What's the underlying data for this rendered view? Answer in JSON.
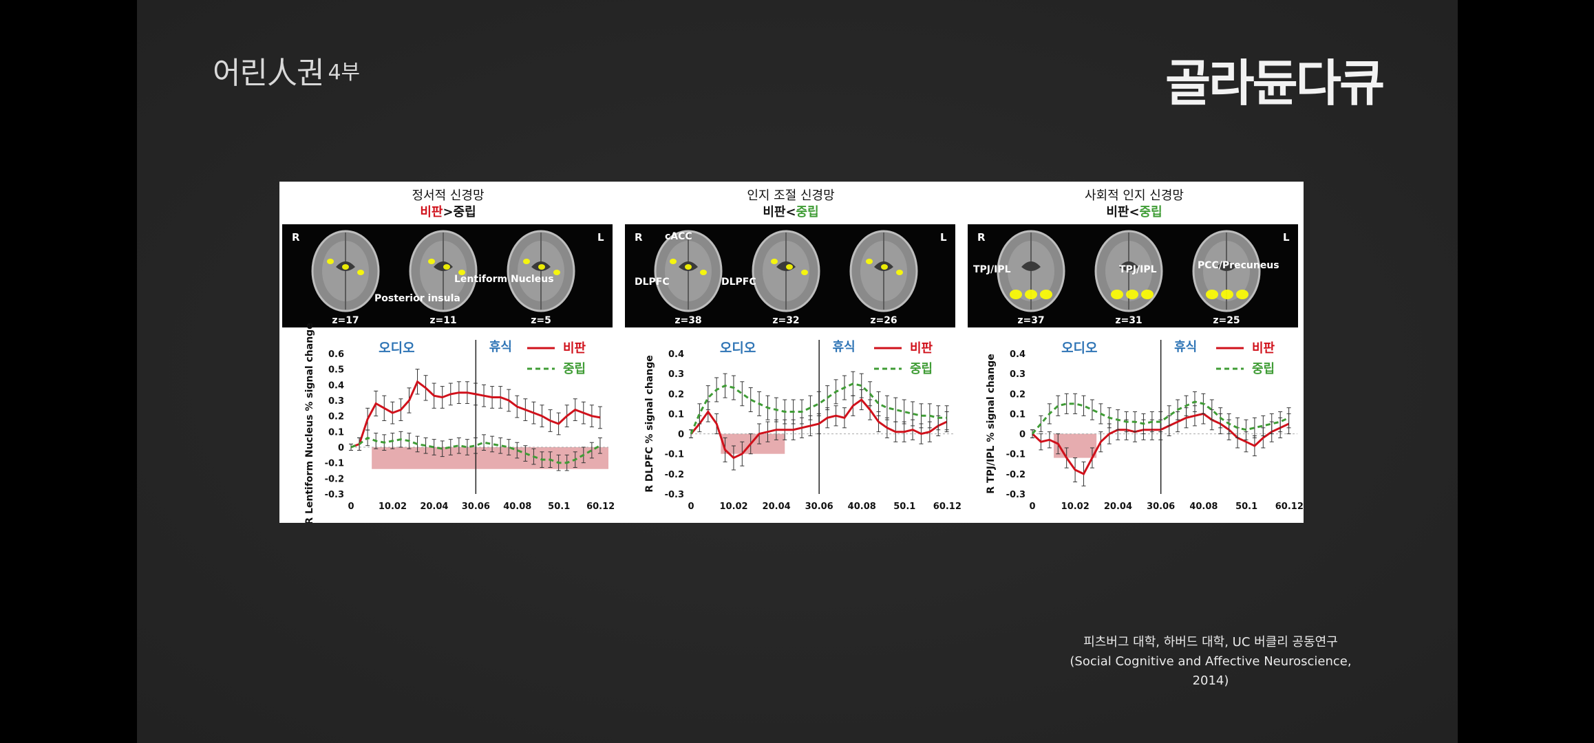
{
  "overlay": {
    "show_title": "어린人권",
    "show_part": "4부",
    "channel": "골라듄다큐",
    "caption_line1": "피츠버그 대학, 하버드 대학, UC 버클리 공동연구",
    "caption_line2": "(Social Cognitive and Affective Neuroscience, 2014)"
  },
  "colors": {
    "criticism": "#d0111b",
    "neutral": "#3f9c35",
    "shade": "#e3a3a6",
    "audio_label": "#2e74b5",
    "highlight": "#ffff00"
  },
  "chart_data": [
    {
      "type": "line",
      "network_title": "정서적 신경망",
      "contrast": {
        "left": "비판",
        "op": ">",
        "right": "중립",
        "emphasis": "left"
      },
      "brain_panel": {
        "side_left": "R",
        "side_right": "L",
        "slices": [
          "z=17",
          "z=11",
          "z=5"
        ],
        "annotations": [
          "Posterior insula",
          "Lentiform Nucleus"
        ]
      },
      "ylabel": "R Lentiform Nucleus % signal change",
      "ylim": [
        -0.3,
        0.6
      ],
      "yticks": [
        0.6,
        0.5,
        0.4,
        0.3,
        0.2,
        0.1,
        0,
        -0.1,
        -0.2,
        -0.3
      ],
      "xlim": [
        0,
        62
      ],
      "xticks": [
        "0",
        "10.02",
        "20.04",
        "30.06",
        "40.08",
        "50.1",
        "60.12"
      ],
      "phase_labels": {
        "audio": "오디오",
        "rest": "휴식"
      },
      "divider_x": 30.06,
      "shade": {
        "x0": 5,
        "x1": 62,
        "y0": -0.14,
        "y1": 0
      },
      "legend": [
        "비판",
        "중립"
      ],
      "x": [
        0,
        2,
        4,
        6,
        8,
        10,
        12,
        14,
        16,
        18,
        20,
        22,
        24,
        26,
        28,
        30,
        32,
        34,
        36,
        38,
        40,
        42,
        44,
        46,
        48,
        50,
        52,
        54,
        56,
        58,
        60
      ],
      "series": [
        {
          "name": "비판",
          "values": [
            0,
            0.02,
            0.18,
            0.28,
            0.25,
            0.22,
            0.24,
            0.3,
            0.42,
            0.38,
            0.33,
            0.32,
            0.34,
            0.35,
            0.35,
            0.34,
            0.33,
            0.32,
            0.32,
            0.3,
            0.26,
            0.24,
            0.22,
            0.2,
            0.17,
            0.15,
            0.2,
            0.24,
            0.22,
            0.2,
            0.19
          ],
          "err": [
            0.02,
            0.04,
            0.07,
            0.08,
            0.08,
            0.07,
            0.07,
            0.08,
            0.08,
            0.08,
            0.08,
            0.07,
            0.07,
            0.07,
            0.07,
            0.07,
            0.07,
            0.07,
            0.07,
            0.07,
            0.07,
            0.07,
            0.07,
            0.07,
            0.07,
            0.07,
            0.07,
            0.07,
            0.07,
            0.07,
            0.07
          ]
        },
        {
          "name": "중립",
          "values": [
            0,
            0.02,
            0.06,
            0.04,
            0.03,
            0.04,
            0.05,
            0.04,
            0.02,
            0.01,
            0,
            -0.01,
            0,
            0.01,
            0,
            0.01,
            0.03,
            0.02,
            0.01,
            0,
            -0.02,
            -0.04,
            -0.06,
            -0.08,
            -0.08,
            -0.1,
            -0.1,
            -0.08,
            -0.05,
            -0.02,
            0.01
          ],
          "err": [
            0.02,
            0.04,
            0.05,
            0.05,
            0.05,
            0.05,
            0.05,
            0.05,
            0.05,
            0.05,
            0.05,
            0.05,
            0.05,
            0.05,
            0.05,
            0.05,
            0.05,
            0.05,
            0.05,
            0.05,
            0.05,
            0.05,
            0.05,
            0.05,
            0.05,
            0.05,
            0.05,
            0.05,
            0.05,
            0.05,
            0.05
          ]
        }
      ]
    },
    {
      "type": "line",
      "network_title": "인지 조절 신경망",
      "contrast": {
        "left": "비판",
        "op": "<",
        "right": "중립",
        "emphasis": "right"
      },
      "brain_panel": {
        "side_left": "R",
        "side_right": "L",
        "slices": [
          "z=38",
          "z=32",
          "z=26"
        ],
        "annotations": [
          "cACC",
          "DLPFC",
          "DLPFC"
        ]
      },
      "ylabel": "R DLPFC % signal change",
      "ylim": [
        -0.3,
        0.4
      ],
      "yticks": [
        0.4,
        0.3,
        0.2,
        0.1,
        0,
        -0.1,
        -0.2,
        -0.3
      ],
      "xlim": [
        0,
        62
      ],
      "xticks": [
        "0",
        "10.02",
        "20.04",
        "30.06",
        "40.08",
        "50.1",
        "60.12"
      ],
      "phase_labels": {
        "audio": "오디오",
        "rest": "휴식"
      },
      "divider_x": 30.06,
      "shade": {
        "x0": 7,
        "x1": 22,
        "y0": -0.1,
        "y1": 0
      },
      "legend": [
        "비판",
        "중립"
      ],
      "x": [
        0,
        2,
        4,
        6,
        8,
        10,
        12,
        14,
        16,
        18,
        20,
        22,
        24,
        26,
        28,
        30,
        32,
        34,
        36,
        38,
        40,
        42,
        44,
        46,
        48,
        50,
        52,
        54,
        56,
        58,
        60
      ],
      "series": [
        {
          "name": "비판",
          "values": [
            0,
            0.05,
            0.11,
            0.05,
            -0.08,
            -0.12,
            -0.1,
            -0.05,
            0,
            0.01,
            0.02,
            0.02,
            0.02,
            0.03,
            0.04,
            0.05,
            0.08,
            0.09,
            0.08,
            0.14,
            0.17,
            0.12,
            0.06,
            0.03,
            0.01,
            0.01,
            0.02,
            0,
            0.01,
            0.04,
            0.06
          ],
          "err": [
            0.02,
            0.04,
            0.05,
            0.05,
            0.06,
            0.06,
            0.06,
            0.05,
            0.05,
            0.05,
            0.05,
            0.05,
            0.05,
            0.05,
            0.05,
            0.05,
            0.05,
            0.05,
            0.05,
            0.05,
            0.05,
            0.05,
            0.05,
            0.05,
            0.05,
            0.05,
            0.05,
            0.05,
            0.05,
            0.05,
            0.05
          ]
        },
        {
          "name": "중립",
          "values": [
            0,
            0.1,
            0.18,
            0.22,
            0.24,
            0.23,
            0.2,
            0.17,
            0.15,
            0.13,
            0.12,
            0.11,
            0.11,
            0.11,
            0.13,
            0.15,
            0.18,
            0.21,
            0.23,
            0.25,
            0.24,
            0.2,
            0.15,
            0.13,
            0.12,
            0.11,
            0.1,
            0.09,
            0.09,
            0.08,
            0.08
          ],
          "err": [
            0.02,
            0.05,
            0.06,
            0.06,
            0.06,
            0.06,
            0.06,
            0.06,
            0.06,
            0.06,
            0.06,
            0.06,
            0.06,
            0.06,
            0.06,
            0.06,
            0.06,
            0.06,
            0.06,
            0.06,
            0.06,
            0.06,
            0.06,
            0.06,
            0.06,
            0.06,
            0.06,
            0.06,
            0.06,
            0.06,
            0.06
          ]
        }
      ]
    },
    {
      "type": "line",
      "network_title": "사회적 인지 신경망",
      "contrast": {
        "left": "비판",
        "op": "<",
        "right": "중립",
        "emphasis": "right"
      },
      "brain_panel": {
        "side_left": "R",
        "side_right": "L",
        "slices": [
          "z=37",
          "z=31",
          "z=25"
        ],
        "annotations": [
          "TPJ/IPL",
          "TPJ/IPL",
          "PCC/Precuneus"
        ]
      },
      "ylabel": "R TPJ/IPL % signal change",
      "ylim": [
        -0.3,
        0.4
      ],
      "yticks": [
        0.4,
        0.3,
        0.2,
        0.1,
        0,
        -0.1,
        -0.2,
        -0.3
      ],
      "xlim": [
        0,
        62
      ],
      "xticks": [
        "0",
        "10.02",
        "20.04",
        "30.06",
        "40.08",
        "50.1",
        "60.12"
      ],
      "phase_labels": {
        "audio": "오디오",
        "rest": "휴식"
      },
      "divider_x": 30.06,
      "shade": {
        "x0": 5,
        "x1": 15,
        "y0": -0.12,
        "y1": 0
      },
      "legend": [
        "비판",
        "중립"
      ],
      "x": [
        0,
        2,
        4,
        6,
        8,
        10,
        12,
        14,
        16,
        18,
        20,
        22,
        24,
        26,
        28,
        30,
        32,
        34,
        36,
        38,
        40,
        42,
        44,
        46,
        48,
        50,
        52,
        54,
        56,
        58,
        60
      ],
      "series": [
        {
          "name": "비판",
          "values": [
            0,
            -0.04,
            -0.03,
            -0.05,
            -0.12,
            -0.18,
            -0.2,
            -0.12,
            -0.04,
            0,
            0.02,
            0.02,
            0.01,
            0.02,
            0.02,
            0.02,
            0.04,
            0.06,
            0.08,
            0.09,
            0.1,
            0.07,
            0.05,
            0.02,
            -0.02,
            -0.04,
            -0.06,
            -0.02,
            0.01,
            0.03,
            0.05
          ],
          "err": [
            0.02,
            0.04,
            0.04,
            0.05,
            0.05,
            0.06,
            0.06,
            0.05,
            0.05,
            0.05,
            0.05,
            0.05,
            0.05,
            0.05,
            0.05,
            0.05,
            0.05,
            0.05,
            0.05,
            0.05,
            0.05,
            0.05,
            0.05,
            0.05,
            0.05,
            0.05,
            0.05,
            0.05,
            0.05,
            0.05,
            0.05
          ]
        },
        {
          "name": "중립",
          "values": [
            0,
            0.05,
            0.1,
            0.14,
            0.15,
            0.15,
            0.14,
            0.12,
            0.1,
            0.08,
            0.07,
            0.06,
            0.06,
            0.05,
            0.06,
            0.06,
            0.09,
            0.12,
            0.14,
            0.16,
            0.15,
            0.12,
            0.08,
            0.05,
            0.03,
            0.02,
            0.03,
            0.04,
            0.05,
            0.06,
            0.08
          ],
          "err": [
            0.02,
            0.04,
            0.05,
            0.05,
            0.05,
            0.05,
            0.05,
            0.05,
            0.05,
            0.05,
            0.05,
            0.05,
            0.05,
            0.05,
            0.05,
            0.05,
            0.05,
            0.05,
            0.05,
            0.05,
            0.05,
            0.05,
            0.05,
            0.05,
            0.05,
            0.05,
            0.05,
            0.05,
            0.05,
            0.05,
            0.05
          ]
        }
      ]
    }
  ]
}
